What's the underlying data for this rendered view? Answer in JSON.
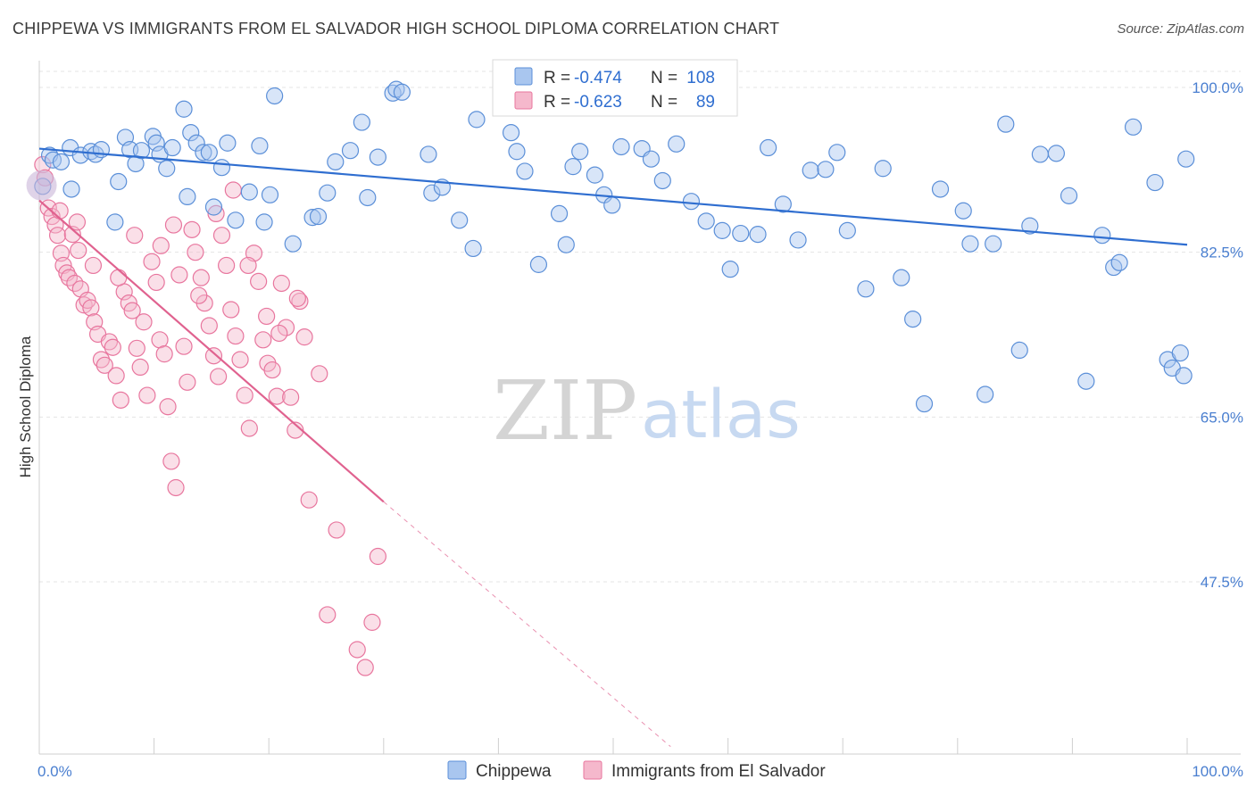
{
  "title": "CHIPPEWA VS IMMIGRANTS FROM EL SALVADOR HIGH SCHOOL DIPLOMA CORRELATION CHART",
  "source": "Source: ZipAtlas.com",
  "watermark": {
    "zip": "ZIP",
    "atlas": "atlas"
  },
  "colors": {
    "blue": "#5b8fd8",
    "blue_fill": "#a9c6ef",
    "pink": "#e8769e",
    "pink_fill": "#f5b8cc",
    "blue_line": "#2f6ed0",
    "pink_line": "#e0628f"
  },
  "legend": {
    "r_label": "R =",
    "n_label": "N =",
    "rows": [
      {
        "r": "-0.474",
        "n": "108"
      },
      {
        "r": "-0.623",
        "n": "89"
      }
    ]
  },
  "bottom_legend": [
    "Chippewa",
    "Immigrants from El Salvador"
  ],
  "chart_data": {
    "type": "scatter",
    "title": "CHIPPEWA VS IMMIGRANTS FROM EL SALVADOR HIGH SCHOOL DIPLOMA CORRELATION CHART",
    "xlabel": "",
    "ylabel": "High School Diploma",
    "xlim": [
      0,
      100
    ],
    "ylim": [
      30,
      100
    ],
    "x_tick_labels": [
      "0.0%",
      "100.0%"
    ],
    "y_ticks": [
      100,
      82.5,
      65,
      47.5
    ],
    "y_tick_labels": [
      "100.0%",
      "82.5%",
      "65.0%",
      "47.5%"
    ],
    "grid": true,
    "legend_position": "top-center",
    "series": [
      {
        "name": "Chippewa",
        "r": -0.474,
        "n": 108,
        "trend": {
          "x": [
            0,
            100
          ],
          "y": [
            93.5,
            83.3
          ]
        },
        "points": [
          [
            0.3,
            89.5
          ],
          [
            0.9,
            92.8
          ],
          [
            1.2,
            92.3
          ],
          [
            1.9,
            92.1
          ],
          [
            2.8,
            89.2
          ],
          [
            2.7,
            93.6
          ],
          [
            3.6,
            92.8
          ],
          [
            4.5,
            93.2
          ],
          [
            4.9,
            92.9
          ],
          [
            5.4,
            93.4
          ],
          [
            6.6,
            85.7
          ],
          [
            6.9,
            90
          ],
          [
            7.5,
            94.7
          ],
          [
            7.9,
            93.4
          ],
          [
            8.4,
            91.9
          ],
          [
            8.9,
            93.3
          ],
          [
            9.9,
            94.8
          ],
          [
            10.2,
            94.1
          ],
          [
            10.5,
            92.9
          ],
          [
            11.1,
            91.4
          ],
          [
            11.6,
            93.6
          ],
          [
            12.6,
            97.7
          ],
          [
            12.9,
            88.4
          ],
          [
            13.2,
            95.2
          ],
          [
            13.7,
            94.1
          ],
          [
            14.3,
            93.1
          ],
          [
            14.8,
            93.1
          ],
          [
            15.2,
            87.3
          ],
          [
            15.9,
            91.5
          ],
          [
            16.4,
            94.1
          ],
          [
            17.1,
            85.9
          ],
          [
            18.3,
            88.9
          ],
          [
            19.2,
            93.8
          ],
          [
            19.6,
            85.7
          ],
          [
            20.1,
            88.6
          ],
          [
            20.5,
            99.1
          ],
          [
            22.1,
            83.4
          ],
          [
            23.8,
            86.2
          ],
          [
            24.3,
            86.3
          ],
          [
            25.1,
            88.8
          ],
          [
            25.8,
            92.1
          ],
          [
            27.1,
            93.3
          ],
          [
            28.1,
            96.3
          ],
          [
            28.6,
            88.3
          ],
          [
            29.5,
            92.6
          ],
          [
            30.8,
            99.4
          ],
          [
            31.1,
            99.8
          ],
          [
            31.6,
            99.5
          ],
          [
            33.9,
            92.9
          ],
          [
            34.2,
            88.8
          ],
          [
            35.1,
            89.4
          ],
          [
            36.6,
            85.9
          ],
          [
            37.8,
            82.9
          ],
          [
            38.1,
            96.6
          ],
          [
            41.1,
            95.2
          ],
          [
            41.6,
            93.2
          ],
          [
            42.3,
            91.1
          ],
          [
            43.5,
            81.2
          ],
          [
            45.3,
            86.6
          ],
          [
            45.9,
            83.3
          ],
          [
            46.5,
            91.6
          ],
          [
            47.1,
            93.2
          ],
          [
            48.4,
            90.7
          ],
          [
            49.2,
            88.6
          ],
          [
            49.9,
            87.5
          ],
          [
            50.7,
            93.7
          ],
          [
            52.5,
            93.5
          ],
          [
            53.3,
            92.4
          ],
          [
            54.3,
            90.1
          ],
          [
            55.5,
            94
          ],
          [
            56.8,
            87.9
          ],
          [
            58.1,
            85.8
          ],
          [
            59.5,
            84.8
          ],
          [
            60.2,
            80.7
          ],
          [
            61.1,
            84.5
          ],
          [
            62.6,
            84.4
          ],
          [
            63.5,
            93.6
          ],
          [
            64.8,
            87.6
          ],
          [
            66.1,
            83.8
          ],
          [
            67.2,
            91.2
          ],
          [
            68.5,
            91.3
          ],
          [
            69.5,
            93.1
          ],
          [
            70.4,
            84.8
          ],
          [
            72,
            78.6
          ],
          [
            73.5,
            91.4
          ],
          [
            75.1,
            79.8
          ],
          [
            76.1,
            75.4
          ],
          [
            77.1,
            66.4
          ],
          [
            78.5,
            89.2
          ],
          [
            80.5,
            86.9
          ],
          [
            81.1,
            83.4
          ],
          [
            82.4,
            67.4
          ],
          [
            83.1,
            83.4
          ],
          [
            84.2,
            96.1
          ],
          [
            85.4,
            72.1
          ],
          [
            86.3,
            85.3
          ],
          [
            87.2,
            92.9
          ],
          [
            88.6,
            93
          ],
          [
            89.7,
            88.5
          ],
          [
            91.2,
            68.8
          ],
          [
            92.6,
            84.3
          ],
          [
            93.6,
            80.9
          ],
          [
            94.1,
            81.4
          ],
          [
            95.3,
            95.8
          ],
          [
            97.2,
            89.9
          ],
          [
            98.3,
            71.1
          ],
          [
            98.7,
            70.2
          ],
          [
            99.4,
            71.8
          ],
          [
            99.7,
            69.4
          ],
          [
            99.9,
            92.4
          ]
        ]
      },
      {
        "name": "Immigrants from El Salvador",
        "r": -0.623,
        "n": 89,
        "trend": {
          "x": [
            0,
            30
          ],
          "y": [
            88.0,
            56.0
          ]
        },
        "trend_dashed": {
          "x": [
            30,
            55
          ],
          "y": [
            56.0,
            30.0
          ]
        },
        "points": [
          [
            0.3,
            91.8
          ],
          [
            0.5,
            90.4
          ],
          [
            0.8,
            87.2
          ],
          [
            1.1,
            86.3
          ],
          [
            1.4,
            85.4
          ],
          [
            1.6,
            84.3
          ],
          [
            1.9,
            82.4
          ],
          [
            2.1,
            81.1
          ],
          [
            2.4,
            80.3
          ],
          [
            2.6,
            79.8
          ],
          [
            2.9,
            84.4
          ],
          [
            3.1,
            79.2
          ],
          [
            3.4,
            82.7
          ],
          [
            3.6,
            78.6
          ],
          [
            3.9,
            76.9
          ],
          [
            4.2,
            77.4
          ],
          [
            4.5,
            76.6
          ],
          [
            4.8,
            75.1
          ],
          [
            5.1,
            73.8
          ],
          [
            5.4,
            71.1
          ],
          [
            5.7,
            70.5
          ],
          [
            6.1,
            73
          ],
          [
            6.4,
            72.4
          ],
          [
            6.7,
            69.4
          ],
          [
            7.1,
            66.8
          ],
          [
            7.4,
            78.3
          ],
          [
            7.8,
            77.1
          ],
          [
            8.1,
            76.3
          ],
          [
            8.5,
            72.3
          ],
          [
            8.8,
            70.3
          ],
          [
            9.1,
            75.1
          ],
          [
            9.4,
            67.3
          ],
          [
            9.8,
            81.5
          ],
          [
            10.2,
            79.3
          ],
          [
            10.5,
            73.2
          ],
          [
            10.9,
            71.7
          ],
          [
            11.2,
            66.1
          ],
          [
            11.5,
            60.3
          ],
          [
            11.9,
            57.5
          ],
          [
            12.2,
            80.1
          ],
          [
            12.6,
            72.5
          ],
          [
            12.9,
            68.7
          ],
          [
            13.3,
            84.9
          ],
          [
            13.6,
            82.5
          ],
          [
            14.1,
            79.8
          ],
          [
            14.4,
            77.1
          ],
          [
            14.8,
            74.7
          ],
          [
            15.2,
            71.5
          ],
          [
            15.6,
            69.3
          ],
          [
            15.9,
            84.3
          ],
          [
            16.3,
            81.1
          ],
          [
            16.7,
            76.4
          ],
          [
            17.1,
            73.6
          ],
          [
            17.5,
            71.1
          ],
          [
            17.9,
            67.3
          ],
          [
            18.3,
            63.8
          ],
          [
            18.7,
            82.4
          ],
          [
            19.1,
            79.4
          ],
          [
            19.5,
            73.2
          ],
          [
            19.9,
            70.7
          ],
          [
            20.3,
            70
          ],
          [
            20.7,
            67.2
          ],
          [
            21.1,
            79.2
          ],
          [
            21.5,
            74.5
          ],
          [
            21.9,
            67.1
          ],
          [
            22.3,
            63.6
          ],
          [
            22.7,
            77.3
          ],
          [
            23.1,
            73.5
          ],
          [
            23.5,
            56.2
          ],
          [
            24.4,
            69.6
          ],
          [
            25.1,
            44
          ],
          [
            25.9,
            53
          ],
          [
            27.7,
            40.3
          ],
          [
            28.4,
            38.4
          ],
          [
            29,
            43.2
          ],
          [
            29.5,
            50.2
          ],
          [
            3.3,
            85.7
          ],
          [
            1.8,
            86.9
          ],
          [
            4.7,
            81.1
          ],
          [
            6.9,
            79.8
          ],
          [
            8.3,
            84.3
          ],
          [
            10.6,
            83.2
          ],
          [
            11.7,
            85.4
          ],
          [
            13.9,
            77.9
          ],
          [
            15.4,
            86.6
          ],
          [
            16.9,
            89.1
          ],
          [
            18.2,
            81.1
          ],
          [
            19.8,
            75.7
          ],
          [
            20.9,
            73.9
          ],
          [
            22.5,
            77.6
          ]
        ]
      }
    ]
  }
}
